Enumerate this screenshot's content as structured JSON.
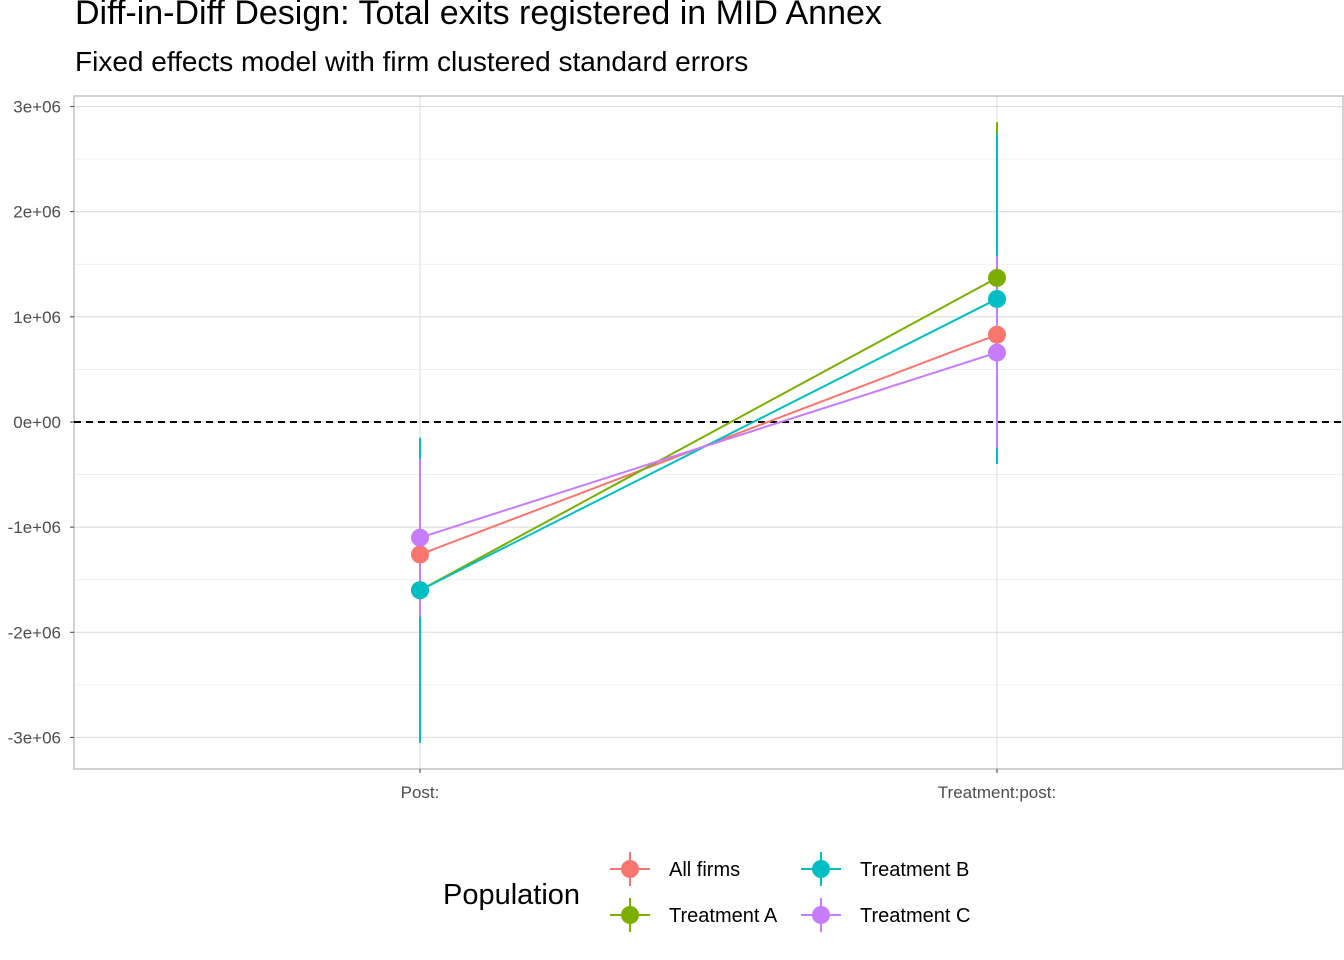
{
  "chart_data": {
    "type": "line",
    "title": "Diff-in-Diff Design: Total exits registered in MID Annex",
    "subtitle": "Fixed effects model with firm clustered standard errors",
    "xlabel": "",
    "ylabel": "",
    "categories": [
      "Post:",
      "Treatment:post:"
    ],
    "ylim": [
      -3300000,
      3100000
    ],
    "yticks": [
      -3000000,
      -2000000,
      -1000000,
      0,
      1000000,
      2000000,
      3000000
    ],
    "ytick_labels": [
      "-3e+06",
      "-2e+06",
      "-1e+06",
      "0e+00",
      "1e+06",
      "2e+06",
      "3e+06"
    ],
    "reference_line": {
      "y": 0,
      "style": "dashed"
    },
    "grid": true,
    "legend": {
      "title": "Population",
      "position": "bottom"
    },
    "series": [
      {
        "name": "All firms",
        "color": "#F8766D",
        "values": [
          -1260000,
          830000
        ],
        "lower": [
          -1780000,
          270000
        ],
        "upper": [
          -740000,
          1390000
        ]
      },
      {
        "name": "Treatment A",
        "color": "#7CAE00",
        "values": [
          -1600000,
          1370000
        ],
        "lower": [
          -3000000,
          -150000
        ],
        "upper": [
          -200000,
          2850000
        ]
      },
      {
        "name": "Treatment B",
        "color": "#00BFC4",
        "values": [
          -1600000,
          1170000
        ],
        "lower": [
          -3050000,
          -400000
        ],
        "upper": [
          -150000,
          2740000
        ]
      },
      {
        "name": "Treatment C",
        "color": "#C77CFF",
        "values": [
          -1100000,
          660000
        ],
        "lower": [
          -1850000,
          -250000
        ],
        "upper": [
          -350000,
          1580000
        ]
      }
    ]
  }
}
